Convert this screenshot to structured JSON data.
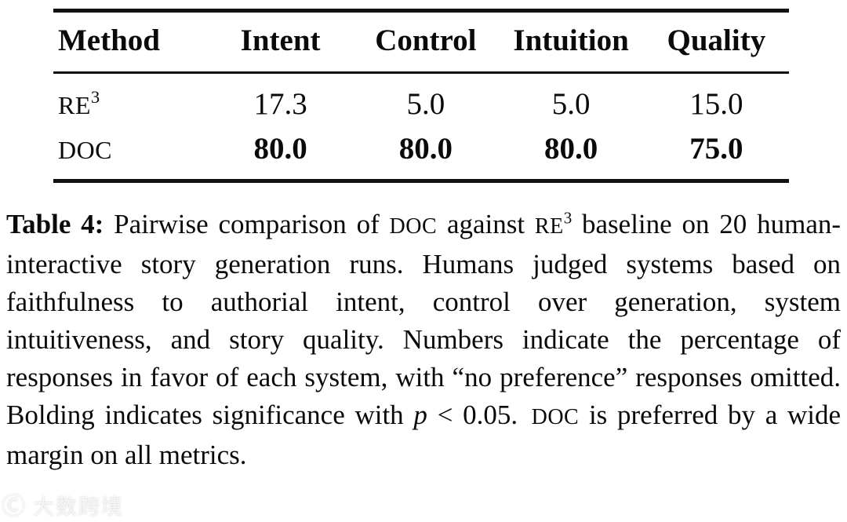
{
  "table": {
    "columns": [
      "Method",
      "Intent",
      "Control",
      "Intuition",
      "Quality"
    ],
    "rows": [
      {
        "method": "RE",
        "method_sup": "3",
        "values": [
          "17.3",
          "5.0",
          "5.0",
          "15.0"
        ]
      },
      {
        "method": "DOC",
        "method_sup": "",
        "values": [
          "80.0",
          "80.0",
          "80.0",
          "75.0"
        ]
      }
    ]
  },
  "caption": {
    "label": "Table 4:",
    "seg1": " Pairwise comparison of ",
    "doc1": "DOC",
    "seg2": " against ",
    "re": "RE",
    "re_sup": "3",
    "seg3": " baseline on 20 human-interactive story generation runs. Humans judged systems based on faithfulness to authorial intent, control over generation, system intuitiveness, and story quality. Numbers indicate the percentage of responses in favor of each system, with “no preference” responses omitted. Bolding indicates significance with ",
    "p_var": "p",
    "seg4": " < 0.05. ",
    "doc2": "DOC",
    "seg5": " is preferred by a wide margin on all metrics."
  },
  "watermark": {
    "logo": "Ⓒ",
    "text": "大数跨境"
  },
  "colors": {
    "text": "#0a0a0a",
    "rule": "#111111",
    "background": "#ffffff",
    "watermark": "rgba(255,255,255,0.72)"
  }
}
